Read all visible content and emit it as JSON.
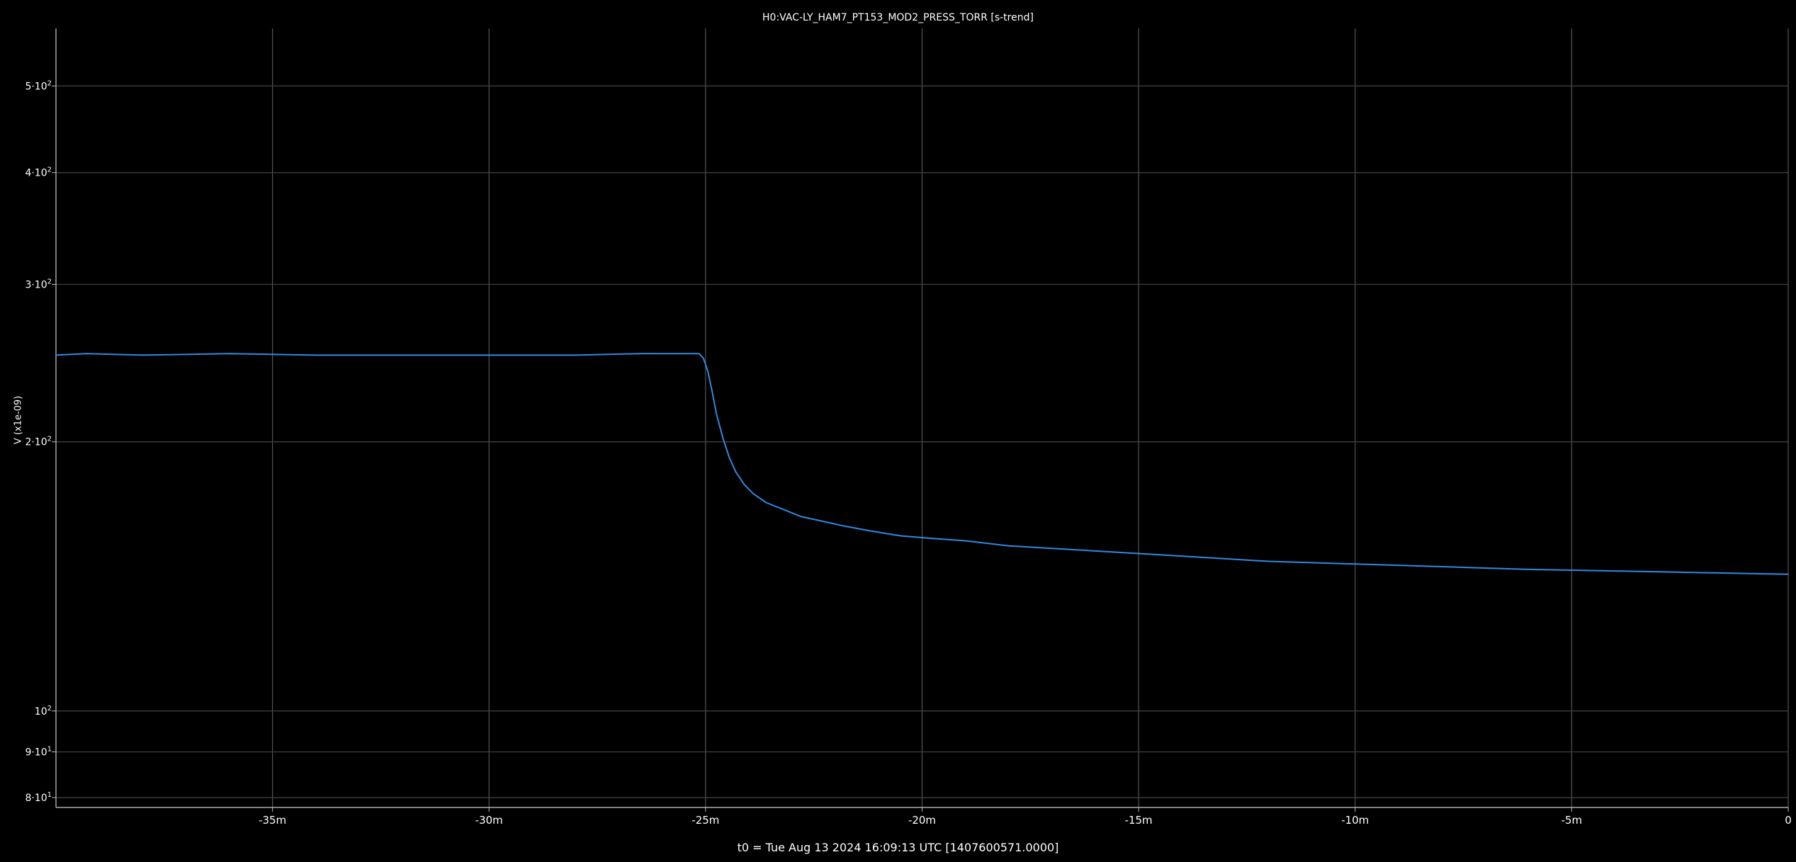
{
  "chart_data": {
    "type": "line",
    "title": "H0:VAC-LY_HAM7_PT153_MOD2_PRESS_TORR [s-trend]",
    "xlabel": "t0 = Tue Aug 13 2024 16:09:13 UTC [1407600571.0000]",
    "ylabel": "V (x1e-09)",
    "x_unit": "minutes relative to t0",
    "y_scale": "log",
    "xlim": [
      -40,
      0
    ],
    "ylim": [
      78,
      580
    ],
    "grid": true,
    "line_color": "#2f8ae0",
    "x_ticks": [
      {
        "value": -35,
        "label": "-35m"
      },
      {
        "value": -30,
        "label": "-30m"
      },
      {
        "value": -25,
        "label": "-25m"
      },
      {
        "value": -20,
        "label": "-20m"
      },
      {
        "value": -15,
        "label": "-15m"
      },
      {
        "value": -10,
        "label": "-10m"
      },
      {
        "value": -5,
        "label": "-5m"
      },
      {
        "value": 0,
        "label": "0"
      }
    ],
    "y_ticks": [
      {
        "value": 80,
        "mant": "8",
        "exp": "1"
      },
      {
        "value": 90,
        "mant": "9",
        "exp": "1"
      },
      {
        "value": 100,
        "mant": "10",
        "exp": "2"
      },
      {
        "value": 200,
        "mant": "2",
        "exp": "2"
      },
      {
        "value": 300,
        "mant": "3",
        "exp": "2"
      },
      {
        "value": 400,
        "mant": "4",
        "exp": "2"
      },
      {
        "value": 500,
        "mant": "5",
        "exp": "2"
      }
    ],
    "series": [
      {
        "x": [
          -40,
          -39.3,
          -38.0,
          -36.0,
          -34.0,
          -32.0,
          -30.0,
          -28.0,
          -26.5,
          -26.0,
          -25.5,
          -25.15,
          -25.05,
          -24.95,
          -24.85,
          -24.75,
          -24.6,
          -24.45,
          -24.3,
          -24.1,
          -23.9,
          -23.6,
          -23.2,
          -22.8,
          -22.3,
          -21.8,
          -21.2,
          -20.5,
          -19.8,
          -19.0,
          -18.0,
          -17.0,
          -16.0,
          -15.0,
          -14.0,
          -13.0,
          -12.0,
          -11.0,
          -10.0,
          -9.0,
          -8.0,
          -7.0,
          -6.0,
          -5.0,
          -4.0,
          -3.0,
          -2.0,
          -1.0,
          0
        ],
        "y": [
          250,
          251,
          250,
          251,
          250,
          250,
          250,
          250,
          251,
          251,
          251,
          251,
          248,
          240,
          228,
          215,
          202,
          192,
          185,
          179,
          175,
          171,
          168,
          165,
          163,
          161,
          159,
          157,
          156,
          155,
          153,
          152,
          151,
          150,
          149,
          148,
          147,
          146.5,
          146,
          145.5,
          145,
          144.5,
          144,
          143.7,
          143.4,
          143.1,
          142.8,
          142.5,
          142.2
        ]
      }
    ]
  }
}
